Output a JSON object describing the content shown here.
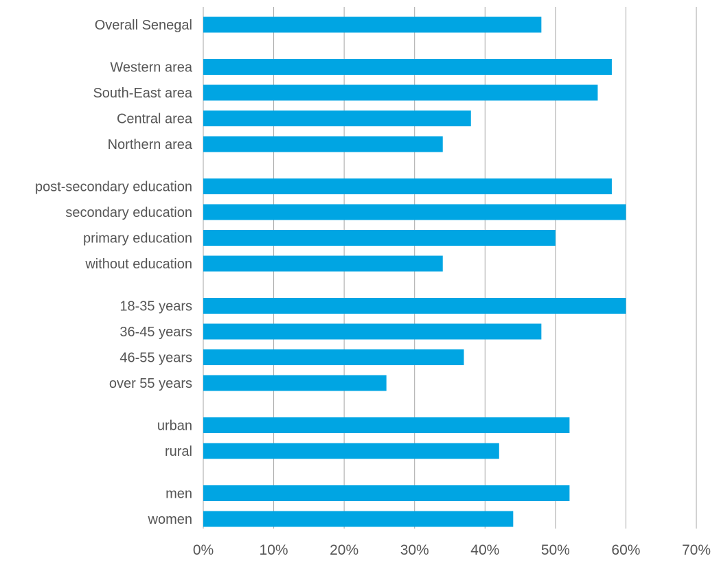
{
  "chart_data": {
    "type": "bar",
    "orientation": "horizontal",
    "categories": [
      "Overall Senegal",
      "Western area",
      "South-East area",
      "Central area",
      "Northern area",
      "post-secondary education",
      "secondary education",
      "primary education",
      "without education",
      "18-35 years",
      "36-45 years",
      "46-55 years",
      "over 55 years",
      "urban",
      "rural",
      "men",
      "women"
    ],
    "values": [
      48,
      58,
      56,
      38,
      34,
      58,
      60,
      50,
      34,
      60,
      48,
      37,
      26,
      52,
      42,
      52,
      44
    ],
    "group_sizes": [
      1,
      4,
      4,
      4,
      2,
      2
    ],
    "xlim": [
      0,
      70
    ],
    "x_ticks": [
      0,
      10,
      20,
      30,
      40,
      50,
      60,
      70
    ],
    "x_tick_labels": [
      "0%",
      "10%",
      "20%",
      "30%",
      "40%",
      "50%",
      "60%",
      "70%"
    ],
    "unit": "%",
    "title": "",
    "xlabel": "",
    "ylabel": "",
    "grid": "vertical",
    "legend": "none",
    "bar_color": "#00A5E3",
    "grid_color": "#A6A6A6",
    "label_color": "#555555"
  }
}
